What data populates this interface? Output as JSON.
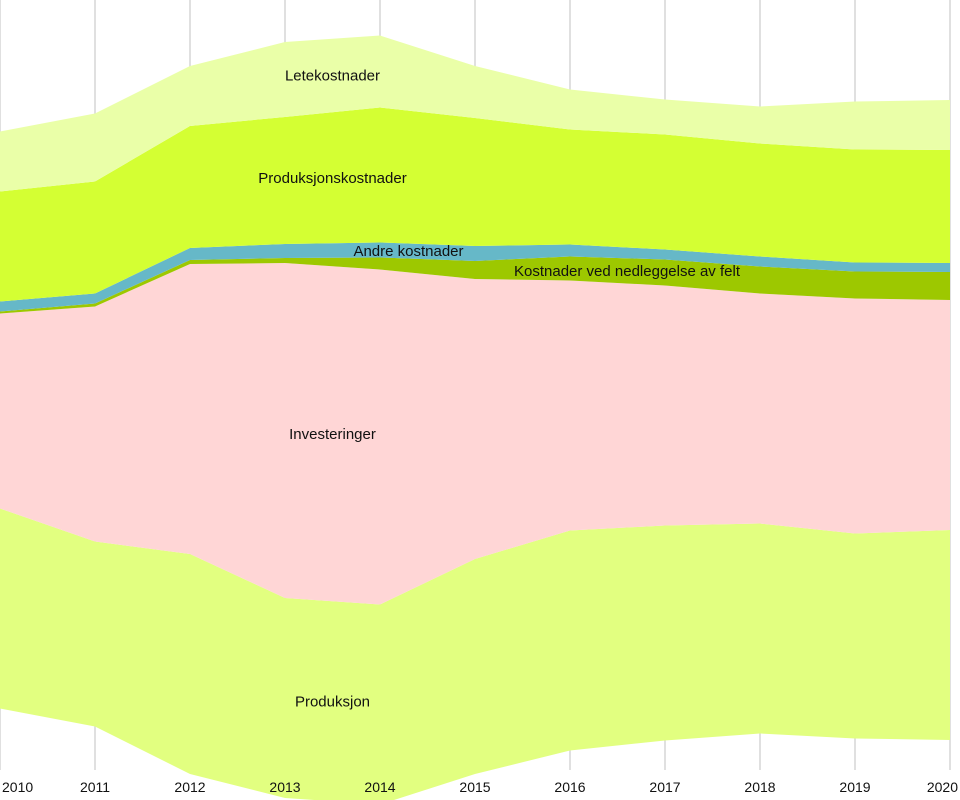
{
  "chart_data": {
    "type": "area",
    "subtype": "streamgraph",
    "title": "",
    "xlabel": "",
    "ylabel": "",
    "x": [
      2010,
      2011,
      2012,
      2013,
      2014,
      2015,
      2016,
      2017,
      2018,
      2019,
      2020
    ],
    "xlim": [
      2010,
      2020
    ],
    "grid": "vertical",
    "legend": "inline labels",
    "series": [
      {
        "name": "Produksjon",
        "color": "#e2ff80",
        "values": [
          200,
          185,
          220,
          200,
          200,
          215,
          220,
          215,
          210,
          205,
          210
        ]
      },
      {
        "name": "Investeringer",
        "color": "#ffd6d6",
        "values": [
          195,
          235,
          290,
          335,
          335,
          280,
          250,
          240,
          230,
          235,
          230
        ]
      },
      {
        "name": "Kostnader ved nedleggelse av felt",
        "color": "#9dc800",
        "values": [
          2,
          3,
          4,
          5,
          12,
          18,
          24,
          26,
          27,
          27,
          28
        ]
      },
      {
        "name": "Andre kostnader",
        "color": "#66b8c8",
        "values": [
          10,
          10,
          12,
          14,
          15,
          15,
          12,
          10,
          10,
          9,
          9
        ]
      },
      {
        "name": "Produksjonskostnader",
        "color": "#d4ff33",
        "values": [
          110,
          112,
          122,
          127,
          135,
          128,
          115,
          115,
          113,
          113,
          113
        ]
      },
      {
        "name": "Letekostnader",
        "color": "#eaffa8",
        "values": [
          60,
          68,
          60,
          75,
          72,
          52,
          40,
          35,
          37,
          48,
          50
        ]
      }
    ],
    "label_positions": {
      "Produksjon": 2013.5,
      "Investeringer": 2013.5,
      "Kostnader ved nedleggelse av felt": 2016.6,
      "Andre kostnader": 2014.3,
      "Produksjonskostnader": 2013.5,
      "Letekostnader": 2013.5
    }
  }
}
